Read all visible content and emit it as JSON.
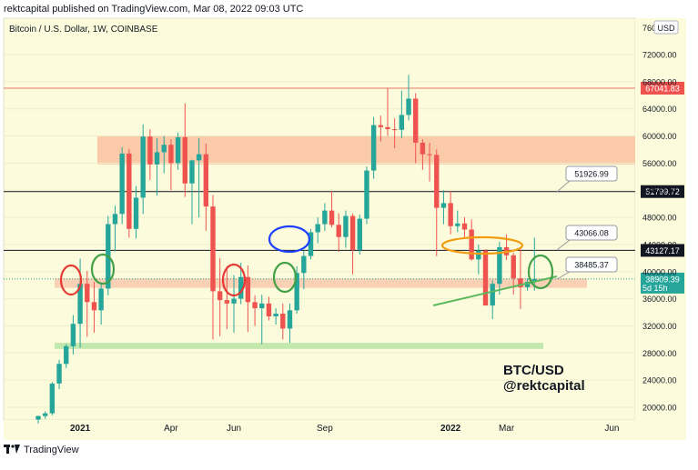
{
  "header": {
    "publisher_text": "rektcapital published on TradingView.com, Mar 08, 2022 09:03 UTC"
  },
  "footer": {
    "logo_text": "TradingView"
  },
  "chart_data": {
    "type": "candlestick",
    "title": "Bitcoin / U.S. Dollar, 1W, COINBASE",
    "currency": "USD",
    "y_axis": {
      "ticks": [
        20000,
        24000,
        28000,
        32000,
        36000,
        40000,
        44000,
        48000,
        52000,
        56000,
        60000,
        64000,
        68000,
        72000
      ],
      "tick_labels": [
        "20000.00",
        "24000.00",
        "28000.00",
        "32000.00",
        "36000.00",
        "40000.00",
        "44000.00",
        "48000.00",
        "52000.00",
        "56000.00",
        "60000.00",
        "64000.00",
        "68000.00",
        "72000.00"
      ],
      "top_label": "76000.00"
    },
    "x_axis": {
      "labels": [
        {
          "text": "2021",
          "bold": true,
          "idx": 6
        },
        {
          "text": "Apr",
          "bold": false,
          "idx": 19
        },
        {
          "text": "Jun",
          "bold": false,
          "idx": 28
        },
        {
          "text": "Sep",
          "bold": false,
          "idx": 41
        },
        {
          "text": "2022",
          "bold": true,
          "idx": 59
        },
        {
          "text": "Mar",
          "bold": false,
          "idx": 67
        },
        {
          "text": "Jun",
          "bold": false,
          "idx": 80
        }
      ]
    },
    "bull_color": "#26a69a",
    "bear_color": "#ef5350",
    "candles": [
      [
        18200,
        18800,
        17600,
        18700
      ],
      [
        18700,
        19400,
        18300,
        19100
      ],
      [
        19100,
        23700,
        18800,
        23500
      ],
      [
        23500,
        27000,
        22700,
        26400
      ],
      [
        26400,
        29300,
        25800,
        29000
      ],
      [
        29000,
        33600,
        27800,
        32300
      ],
      [
        32300,
        41900,
        28800,
        38200
      ],
      [
        38200,
        40100,
        30400,
        35500
      ],
      [
        35500,
        38500,
        31000,
        34300
      ],
      [
        34300,
        38300,
        32200,
        37500
      ],
      [
        37500,
        48200,
        36500,
        47000
      ],
      [
        47000,
        49700,
        43000,
        48500
      ],
      [
        48500,
        58300,
        47000,
        57400
      ],
      [
        57400,
        58100,
        45000,
        46300
      ],
      [
        46300,
        52600,
        44900,
        50900
      ],
      [
        50900,
        61700,
        48500,
        59900
      ],
      [
        59900,
        61000,
        53500,
        55800
      ],
      [
        55800,
        59700,
        51200,
        57600
      ],
      [
        57600,
        60000,
        54500,
        58700
      ],
      [
        58700,
        59500,
        52000,
        56000
      ],
      [
        56000,
        60500,
        55000,
        59800
      ],
      [
        59800,
        64800,
        51000,
        53000
      ],
      [
        53000,
        56500,
        47000,
        56400
      ],
      [
        56400,
        59700,
        48000,
        57300
      ],
      [
        57300,
        58900,
        46000,
        49600
      ],
      [
        49600,
        51300,
        30000,
        37100
      ],
      [
        37100,
        42000,
        30500,
        35800
      ],
      [
        35800,
        40800,
        31500,
        35300
      ],
      [
        35300,
        39500,
        31000,
        36000
      ],
      [
        36000,
        41300,
        35200,
        39200
      ],
      [
        39200,
        40900,
        31100,
        35500
      ],
      [
        35500,
        36500,
        32000,
        34600
      ],
      [
        34600,
        36600,
        29300,
        35300
      ],
      [
        35300,
        36300,
        32800,
        33400
      ],
      [
        33400,
        34600,
        32200,
        33800
      ],
      [
        33800,
        35300,
        30000,
        31600
      ],
      [
        31600,
        35300,
        29500,
        34300
      ],
      [
        34300,
        40800,
        33800,
        39800
      ],
      [
        39800,
        43100,
        37400,
        42300
      ],
      [
        42300,
        46300,
        41800,
        45800
      ],
      [
        45800,
        48000,
        44200,
        47000
      ],
      [
        47000,
        50100,
        46000,
        49000
      ],
      [
        49000,
        51900,
        46500,
        46900
      ],
      [
        46900,
        48600,
        42900,
        45100
      ],
      [
        45100,
        49000,
        43500,
        48200
      ],
      [
        48200,
        48600,
        39600,
        43200
      ],
      [
        43200,
        48400,
        42500,
        47800
      ],
      [
        47800,
        55500,
        47000,
        54900
      ],
      [
        54900,
        62800,
        53700,
        61600
      ],
      [
        61600,
        63000,
        59200,
        61300
      ],
      [
        61300,
        67000,
        60000,
        61000
      ],
      [
        61000,
        62600,
        58200,
        60900
      ],
      [
        60900,
        66700,
        59700,
        63100
      ],
      [
        63100,
        69000,
        62300,
        65500
      ],
      [
        65500,
        66300,
        56000,
        59000
      ],
      [
        59000,
        59500,
        55000,
        57300
      ],
      [
        57300,
        59000,
        53300,
        57200
      ],
      [
        57200,
        58000,
        42300,
        49400
      ],
      [
        49400,
        52000,
        47000,
        50100
      ],
      [
        50100,
        51900,
        45500,
        46700
      ],
      [
        46700,
        49000,
        45800,
        47100
      ],
      [
        47100,
        48000,
        44800,
        46200
      ],
      [
        46200,
        47700,
        41600,
        41800
      ],
      [
        41800,
        44000,
        39600,
        43100
      ],
      [
        43100,
        43300,
        35200,
        35000
      ],
      [
        35000,
        38700,
        33000,
        38200
      ],
      [
        38200,
        44400,
        36600,
        43600
      ],
      [
        43600,
        45500,
        41700,
        42400
      ],
      [
        42400,
        42800,
        36600,
        39000
      ],
      [
        39000,
        43500,
        34500,
        37700
      ],
      [
        37700,
        39000,
        37200,
        38500
      ],
      [
        38500,
        45000,
        37200,
        38900
      ]
    ],
    "horizontal_lines": [
      {
        "price": 67041.83,
        "color": "#e8776a",
        "label": "67041.83",
        "label_bg": "#ef5350"
      },
      {
        "price": 51799.72,
        "color": "#131722",
        "label": "51799.72",
        "label_bg": "#131722"
      },
      {
        "price": 43127.17,
        "color": "#131722",
        "label": "43127.17",
        "label_bg": "#131722"
      }
    ],
    "zones": [
      {
        "y_top": 60000,
        "y_bottom": 55800,
        "color": "#f9c1a0"
      },
      {
        "y_top": 39000,
        "y_bottom": 37600,
        "color": "#f9c9ae"
      },
      {
        "y_top": 29500,
        "y_bottom": 28600,
        "color": "#b7e4a6"
      }
    ],
    "callouts": [
      {
        "label": "51926.99"
      },
      {
        "label": "43066.08"
      },
      {
        "label": "38485.37"
      }
    ],
    "current_price": {
      "label": "38909.39",
      "countdown": "5d 15h",
      "color": "#26a69a"
    },
    "annotation": {
      "line1": "BTC/USD",
      "line2": "@rektcapital"
    },
    "trendline": {
      "color": "#5cb85c"
    }
  }
}
